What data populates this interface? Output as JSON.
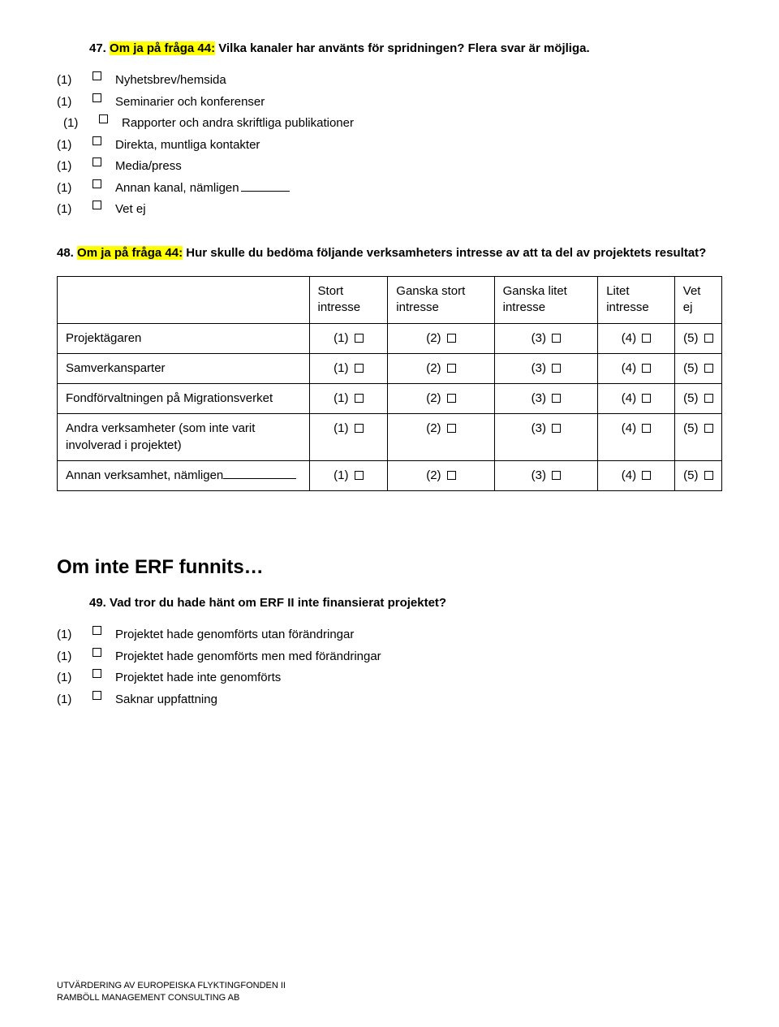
{
  "q47": {
    "number": "47.",
    "highlight": "Om ja på fråga 44:",
    "rest": " Vilka kanaler har använts för spridningen? Flera svar är möjliga.",
    "options": [
      {
        "num": "(1)",
        "label": "Nyhetsbrev/hemsida",
        "blank": false
      },
      {
        "num": "(1)",
        "label": "Seminarier och konferenser",
        "blank": false
      },
      {
        "num": "(1)",
        "label": "Rapporter och andra skriftliga publikationer",
        "blank": false,
        "indent": true
      },
      {
        "num": "(1)",
        "label": "Direkta, muntliga kontakter",
        "blank": false
      },
      {
        "num": "(1)",
        "label": "Media/press",
        "blank": false
      },
      {
        "num": "(1)",
        "label": "Annan kanal, nämligen",
        "blank": true
      },
      {
        "num": "(1)",
        "label": "Vet ej",
        "blank": false
      }
    ]
  },
  "q48": {
    "number": "48.",
    "highlight": "Om ja på fråga 44:",
    "rest": " Hur skulle du bedöma följande verksamheters intresse av att ta del av projektets resultat?",
    "headers": [
      "Stort intresse",
      "Ganska stort intresse",
      "Ganska litet intresse",
      "Litet intresse",
      "Vet ej"
    ],
    "groups": [
      [
        {
          "label": "Projektägaren",
          "blank": false
        },
        {
          "label": "Samverkansparter",
          "blank": false
        },
        {
          "label": "Fondförvaltningen på Migrationsverket",
          "blank": false
        }
      ],
      [
        {
          "label": "Andra verksamheter (som inte varit involverad i projektet)",
          "blank": false
        },
        {
          "label": "Annan verksamhet, nämligen",
          "blank": true
        }
      ]
    ],
    "cells": [
      "(1)",
      "(2)",
      "(3)",
      "(4)",
      "(5)"
    ]
  },
  "section": "Om inte ERF funnits…",
  "q49": {
    "number": "49.",
    "text": "Vad tror du hade hänt om ERF II inte finansierat projektet?",
    "options": [
      {
        "num": "(1)",
        "label": "Projektet hade genomförts utan förändringar"
      },
      {
        "num": "(1)",
        "label": "Projektet hade genomförts men med förändringar"
      },
      {
        "num": "(1)",
        "label": "Projektet hade inte genomförts"
      },
      {
        "num": "(1)",
        "label": "Saknar uppfattning"
      }
    ]
  },
  "footer": {
    "line1": "UTVÄRDERING AV EUROPEISKA FLYKTINGFONDEN II",
    "line2": "RAMBÖLL MANAGEMENT CONSULTING AB"
  },
  "checkbox_svg": "<svg width='11' height='11'><rect x='0.5' y='0.5' width='10' height='10' fill='none' stroke='#000' stroke-width='1' shape-rendering='crispEdges'/></svg>"
}
